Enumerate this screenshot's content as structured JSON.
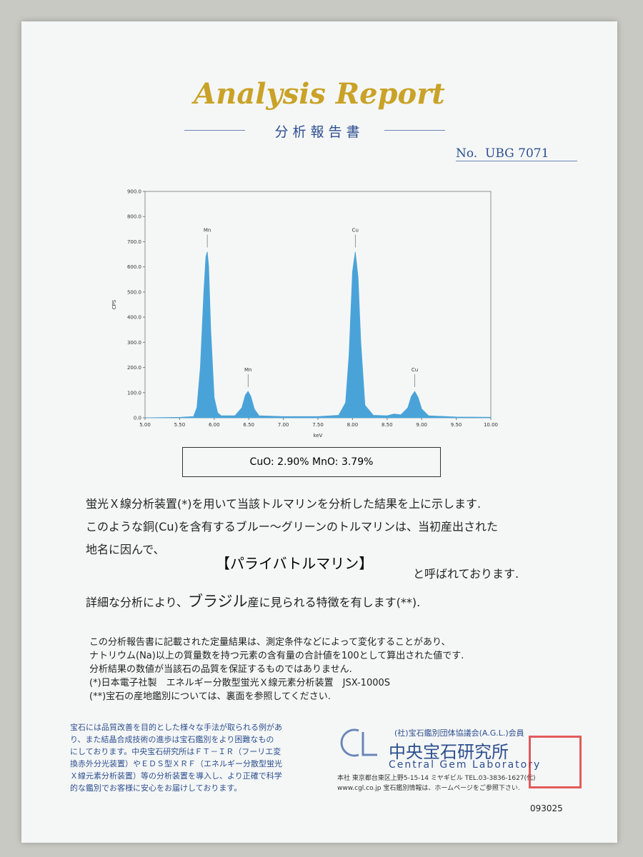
{
  "header": {
    "title": "Analysis Report",
    "subtitle": "分析報告書",
    "number_label": "No.",
    "number": "UBG 7071"
  },
  "chart_data": {
    "type": "area",
    "color": "#4aa3d8",
    "x_label": "keV",
    "y_label": "CPS",
    "x": [
      5.0,
      5.5,
      5.7,
      5.75,
      5.8,
      5.85,
      5.88,
      5.9,
      5.92,
      5.95,
      6.0,
      6.05,
      6.1,
      6.3,
      6.4,
      6.45,
      6.49,
      6.53,
      6.58,
      6.65,
      7.0,
      7.5,
      7.8,
      7.9,
      7.95,
      8.0,
      8.04,
      8.08,
      8.12,
      8.18,
      8.3,
      8.5,
      8.6,
      8.7,
      8.8,
      8.85,
      8.9,
      8.95,
      9.0,
      9.1,
      9.5,
      10.0
    ],
    "values": [
      0,
      2,
      5,
      40,
      200,
      500,
      640,
      660,
      600,
      350,
      80,
      20,
      8,
      8,
      40,
      90,
      105,
      85,
      35,
      8,
      5,
      5,
      10,
      60,
      250,
      580,
      660,
      560,
      300,
      50,
      10,
      8,
      15,
      12,
      40,
      85,
      105,
      80,
      35,
      8,
      3,
      2
    ],
    "xlim": [
      5,
      10
    ],
    "ylim": [
      0,
      900
    ],
    "xticks": [
      {
        "value": 5,
        "label": "5.00"
      },
      {
        "value": 5.5,
        "label": "5.50"
      },
      {
        "value": 6,
        "label": "6.00"
      },
      {
        "value": 6.5,
        "label": "6.50"
      },
      {
        "value": 7,
        "label": "7.00"
      },
      {
        "value": 7.5,
        "label": "7.50"
      },
      {
        "value": 8,
        "label": "8.00"
      },
      {
        "value": 8.5,
        "label": "8.50"
      },
      {
        "value": 9,
        "label": "9.00"
      },
      {
        "value": 9.5,
        "label": "9.50"
      },
      {
        "value": 10,
        "label": "10.00"
      }
    ],
    "yticks": [
      {
        "value": 0,
        "label": "0.0"
      },
      {
        "value": 100,
        "label": "100.0"
      },
      {
        "value": 200,
        "label": "200.0"
      },
      {
        "value": 300,
        "label": "300.0"
      },
      {
        "value": 400,
        "label": "400.0"
      },
      {
        "value": 500,
        "label": "500.0"
      },
      {
        "value": 600,
        "label": "600.0"
      },
      {
        "value": 700,
        "label": "700.0"
      },
      {
        "value": 800,
        "label": "800.0"
      },
      {
        "value": 900,
        "label": "900.0"
      }
    ],
    "annotations": [
      {
        "text": "Mn",
        "x": 5.9,
        "y": 660
      },
      {
        "text": "Mn",
        "x": 6.49,
        "y": 105
      },
      {
        "text": "Cu",
        "x": 8.04,
        "y": 660
      },
      {
        "text": "Cu",
        "x": 8.9,
        "y": 105
      }
    ]
  },
  "result": "CuO: 2.90%   MnO: 3.79%",
  "body": {
    "line1": "蛍光Ｘ線分析装置(*)を用いて当該トルマリンを分析した結果を上に示します.",
    "line2": "このような銅(Cu)を含有するブルー〜グリーンのトルマリンは、当初産出された",
    "line3": "地名に因んで、",
    "name": "【パライバトルマリン】",
    "name_suffix": "と呼ばれております.",
    "line5a": "詳細な分析により、",
    "origin": "ブラジル",
    "line5b": "産に見られる特徴を有します(**)."
  },
  "notes": [
    "この分析報告書に記載された定量結果は、測定条件などによって変化することがあり、",
    "ナトリウム(Na)以上の質量数を持つ元素の含有量の合計値を100として算出された値です.",
    "分析結果の数値が当該石の品質を保証するものではありません.",
    "(*)日本電子社製　エネルギー分散型蛍光Ｘ線元素分析装置　JSX-1000S",
    "(**)宝石の産地鑑別については、裏面を参照してください."
  ],
  "footer": {
    "disclaimer": [
      "宝石には品質改善を目的とした様々な手法が取られる例があ",
      "り、また結晶合成技術の進歩は宝石鑑別をより困難なもの",
      "にしております。中央宝石研究所はＦＴ－ＩＲ（フーリエ変",
      "換赤外分光装置）やＥＤＳ型ＸＲＦ（エネルギー分散型蛍光",
      "Ｘ線元素分析装置）等の分析装置を導入し、より正確で科学",
      "的な鑑別でお客様に安心をお届けしております。"
    ],
    "association": "(社)宝石鑑別団体協議会(A.G.L.)会員",
    "lab_jp": "中央宝石研究所",
    "lab_en": "Central Gem Laboratory",
    "address": "本社 東京都台東区上野5-15-14 ミヤギビル TEL.03-3836-1627(代)",
    "web": "www.cgl.co.jp 宝石鑑別情報は、ホームページをご参照下さい.",
    "serial": "093025"
  }
}
